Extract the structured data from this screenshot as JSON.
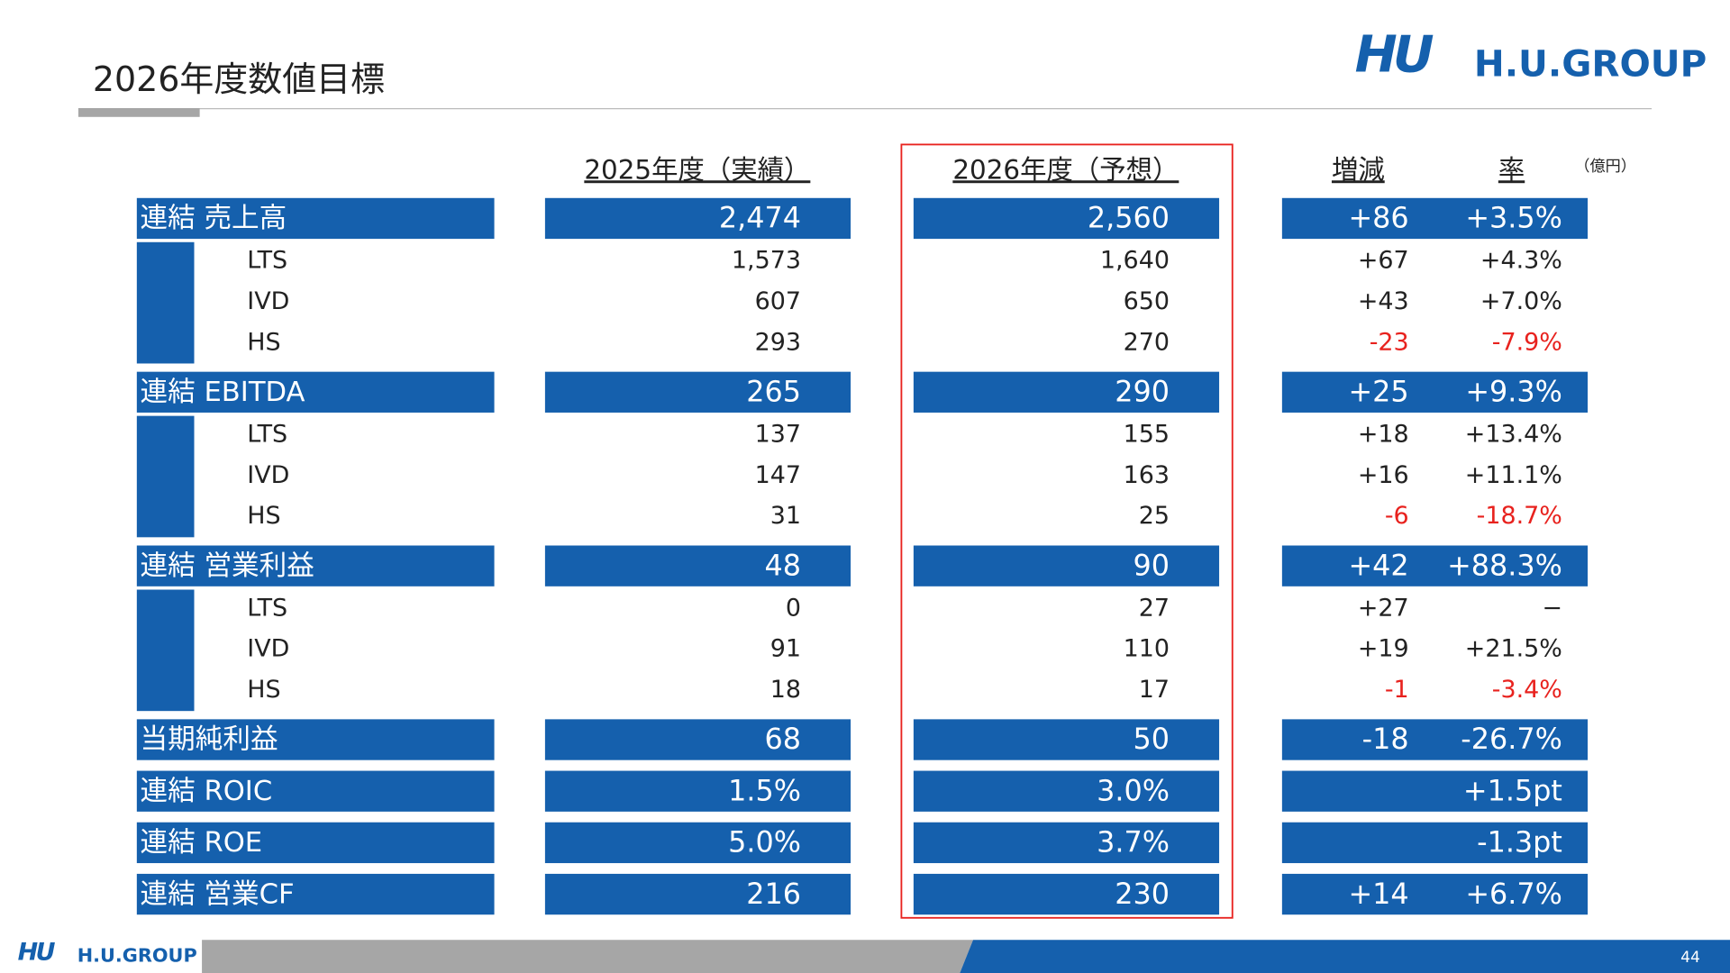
{
  "header": {
    "title": "2026年度数値目標",
    "logo_mark": "HU",
    "logo_text": "H.U.GROUP"
  },
  "table": {
    "unit": "（億円）",
    "columns": [
      "2025年度（実績）",
      "2026年度（予想）",
      "増減",
      "率"
    ],
    "groups": [
      {
        "label": "連結 売上高",
        "fy2025": "2,474",
        "fy2026": "2,560",
        "change": "+86",
        "rate": "+3.5%",
        "items": [
          {
            "label": "LTS",
            "fy2025": "1,573",
            "fy2026": "1,640",
            "change": "+67",
            "rate": "+4.3%"
          },
          {
            "label": "IVD",
            "fy2025": "607",
            "fy2026": "650",
            "change": "+43",
            "rate": "+7.0%"
          },
          {
            "label": "HS",
            "fy2025": "293",
            "fy2026": "270",
            "change": "-23",
            "rate": "-7.9%"
          }
        ]
      },
      {
        "label": "連結 EBITDA",
        "fy2025": "265",
        "fy2026": "290",
        "change": "+25",
        "rate": "+9.3%",
        "items": [
          {
            "label": "LTS",
            "fy2025": "137",
            "fy2026": "155",
            "change": "+18",
            "rate": "+13.4%"
          },
          {
            "label": "IVD",
            "fy2025": "147",
            "fy2026": "163",
            "change": "+16",
            "rate": "+11.1%"
          },
          {
            "label": "HS",
            "fy2025": "31",
            "fy2026": "25",
            "change": "-6",
            "rate": "-18.7%"
          }
        ]
      },
      {
        "label": "連結 営業利益",
        "fy2025": "48",
        "fy2026": "90",
        "change": "+42",
        "rate": "+88.3%",
        "items": [
          {
            "label": "LTS",
            "fy2025": "0",
            "fy2026": "27",
            "change": "+27",
            "rate": "−"
          },
          {
            "label": "IVD",
            "fy2025": "91",
            "fy2026": "110",
            "change": "+19",
            "rate": "+21.5%"
          },
          {
            "label": "HS",
            "fy2025": "18",
            "fy2026": "17",
            "change": "-1",
            "rate": "-3.4%"
          }
        ]
      },
      {
        "label": "当期純利益",
        "fy2025": "68",
        "fy2026": "50",
        "change": "-18",
        "rate": "-26.7%"
      },
      {
        "label": "連結 ROIC",
        "fy2025": "1.5%",
        "fy2026": "3.0%",
        "rate": "+1.5pt"
      },
      {
        "label": "連結 ROE",
        "fy2025": "5.0%",
        "fy2026": "3.7%",
        "rate": "-1.3pt"
      },
      {
        "label": "連結 営業CF",
        "fy2025": "216",
        "fy2026": "230",
        "change": "+14",
        "rate": "+6.7%"
      }
    ]
  },
  "footer": {
    "logo_mark": "HU",
    "logo_text": "H.U.GROUP",
    "page": "44"
  }
}
